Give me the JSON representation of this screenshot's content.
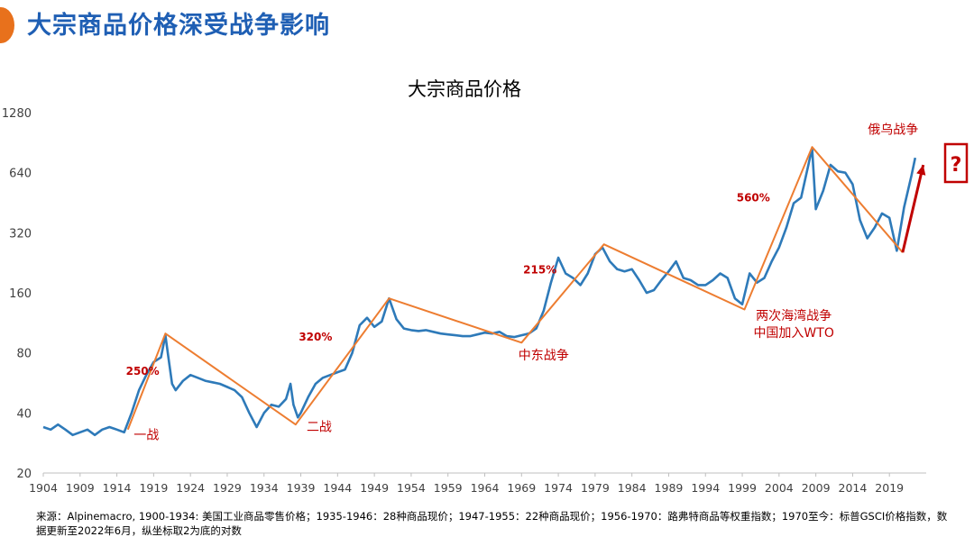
{
  "header": {
    "title": "大宗商品价格深受战争影响",
    "accent_color": "#e8711c",
    "title_color": "#1f5fb4"
  },
  "chart_data": {
    "type": "line",
    "title": "大宗商品价格",
    "y_scale": "log2",
    "ylim": [
      20,
      1280
    ],
    "yticks": [
      20,
      40,
      80,
      160,
      320,
      640,
      1280
    ],
    "xlim": [
      1904,
      2024
    ],
    "xticks": [
      1904,
      1909,
      1914,
      1919,
      1924,
      1929,
      1934,
      1939,
      1944,
      1949,
      1954,
      1959,
      1964,
      1969,
      1974,
      1979,
      1984,
      1989,
      1994,
      1999,
      2004,
      2009,
      2014,
      2019
    ],
    "grid": false,
    "series": [
      {
        "color": "#2e7ab9",
        "points": [
          [
            1904,
            34
          ],
          [
            1905,
            33
          ],
          [
            1906,
            35
          ],
          [
            1907,
            33
          ],
          [
            1908,
            31
          ],
          [
            1909,
            32
          ],
          [
            1910,
            33
          ],
          [
            1911,
            31
          ],
          [
            1912,
            33
          ],
          [
            1913,
            34
          ],
          [
            1914,
            33
          ],
          [
            1915,
            32
          ],
          [
            1916,
            40
          ],
          [
            1917,
            52
          ],
          [
            1918,
            62
          ],
          [
            1919,
            72
          ],
          [
            1920,
            76
          ],
          [
            1920.6,
            98
          ],
          [
            1921,
            76
          ],
          [
            1921.5,
            56
          ],
          [
            1922,
            52
          ],
          [
            1923,
            58
          ],
          [
            1924,
            62
          ],
          [
            1925,
            60
          ],
          [
            1926,
            58
          ],
          [
            1927,
            57
          ],
          [
            1928,
            56
          ],
          [
            1929,
            54
          ],
          [
            1930,
            52
          ],
          [
            1931,
            48
          ],
          [
            1932,
            40
          ],
          [
            1933,
            34
          ],
          [
            1934,
            40
          ],
          [
            1935,
            44
          ],
          [
            1936,
            43
          ],
          [
            1937,
            47
          ],
          [
            1937.6,
            56
          ],
          [
            1938,
            44
          ],
          [
            1938.6,
            38
          ],
          [
            1939,
            40
          ],
          [
            1940,
            48
          ],
          [
            1941,
            56
          ],
          [
            1942,
            60
          ],
          [
            1943,
            62
          ],
          [
            1944,
            64
          ],
          [
            1945,
            66
          ],
          [
            1946,
            80
          ],
          [
            1947,
            110
          ],
          [
            1948,
            120
          ],
          [
            1949,
            108
          ],
          [
            1950,
            115
          ],
          [
            1951,
            150
          ],
          [
            1952,
            118
          ],
          [
            1953,
            106
          ],
          [
            1954,
            104
          ],
          [
            1955,
            103
          ],
          [
            1956,
            104
          ],
          [
            1957,
            102
          ],
          [
            1958,
            100
          ],
          [
            1959,
            99
          ],
          [
            1960,
            98
          ],
          [
            1961,
            97
          ],
          [
            1962,
            97
          ],
          [
            1963,
            99
          ],
          [
            1964,
            101
          ],
          [
            1965,
            100
          ],
          [
            1966,
            102
          ],
          [
            1967,
            97
          ],
          [
            1968,
            96
          ],
          [
            1969,
            98
          ],
          [
            1970,
            100
          ],
          [
            1971,
            106
          ],
          [
            1972,
            130
          ],
          [
            1973,
            180
          ],
          [
            1974,
            240
          ],
          [
            1975,
            200
          ],
          [
            1976,
            190
          ],
          [
            1977,
            175
          ],
          [
            1978,
            200
          ],
          [
            1979,
            250
          ],
          [
            1980,
            270
          ],
          [
            1981,
            230
          ],
          [
            1982,
            210
          ],
          [
            1983,
            205
          ],
          [
            1984,
            210
          ],
          [
            1985,
            185
          ],
          [
            1986,
            160
          ],
          [
            1987,
            165
          ],
          [
            1988,
            185
          ],
          [
            1989,
            205
          ],
          [
            1990,
            230
          ],
          [
            1991,
            190
          ],
          [
            1992,
            185
          ],
          [
            1993,
            175
          ],
          [
            1994,
            175
          ],
          [
            1995,
            185
          ],
          [
            1996,
            200
          ],
          [
            1997,
            190
          ],
          [
            1998,
            150
          ],
          [
            1999,
            140
          ],
          [
            2000,
            200
          ],
          [
            2001,
            180
          ],
          [
            2002,
            190
          ],
          [
            2003,
            230
          ],
          [
            2004,
            270
          ],
          [
            2005,
            340
          ],
          [
            2006,
            450
          ],
          [
            2007,
            480
          ],
          [
            2008.5,
            850
          ],
          [
            2009,
            420
          ],
          [
            2010,
            520
          ],
          [
            2011,
            700
          ],
          [
            2012,
            650
          ],
          [
            2013,
            640
          ],
          [
            2014,
            560
          ],
          [
            2015,
            370
          ],
          [
            2016,
            300
          ],
          [
            2017,
            340
          ],
          [
            2018,
            400
          ],
          [
            2019,
            380
          ],
          [
            2020,
            260
          ],
          [
            2021,
            430
          ],
          [
            2022,
            620
          ],
          [
            2022.5,
            760
          ]
        ]
      },
      {
        "color": "#ed7d31",
        "points": [
          [
            1915.5,
            33
          ],
          [
            1920.6,
            100
          ],
          [
            1938.3,
            35
          ],
          [
            1951,
            150
          ],
          [
            1969,
            90
          ],
          [
            1980.2,
            280
          ],
          [
            1999.3,
            132
          ],
          [
            2008.5,
            860
          ],
          [
            2020.8,
            255
          ]
        ]
      }
    ],
    "annotations": [
      {
        "text": "250%",
        "x": 1917.5,
        "y": 62,
        "color": "#c00000"
      },
      {
        "text": "320%",
        "x": 1941,
        "y": 92,
        "color": "#c00000"
      },
      {
        "text": "215%",
        "x": 1971.5,
        "y": 200,
        "color": "#c00000"
      },
      {
        "text": "560%",
        "x": 2000.5,
        "y": 460,
        "color": "#c00000"
      },
      {
        "text": "一战",
        "x": 1918,
        "y": 29.5,
        "color": "#c00000"
      },
      {
        "text": "二战",
        "x": 1941.5,
        "y": 32.5,
        "color": "#c00000"
      },
      {
        "text": "中东战争",
        "x": 1972,
        "y": 74,
        "color": "#c00000"
      },
      {
        "text": "两次海湾战争",
        "x": 2006,
        "y": 117,
        "color": "#c00000"
      },
      {
        "text": "中国加入WTO",
        "x": 2006,
        "y": 96,
        "color": "#c00000"
      },
      {
        "text": "俄乌战争",
        "x": 2019.5,
        "y": 1000,
        "color": "#c00000"
      }
    ],
    "arrow": {
      "from": [
        2020.8,
        255
      ],
      "to": [
        2023.6,
        700
      ],
      "color": "#c00000"
    },
    "question_mark": "?"
  },
  "source_text": "来源：Alpinemacro, 1900-1934: 美国工业商品零售价格；1935-1946：28种商品现价；1947-1955：22种商品现价；1956-1970：路弗特商品等权重指数；1970至今：标普GSCI价格指数，数据更新至2022年6月，纵坐标取2为底的对数"
}
